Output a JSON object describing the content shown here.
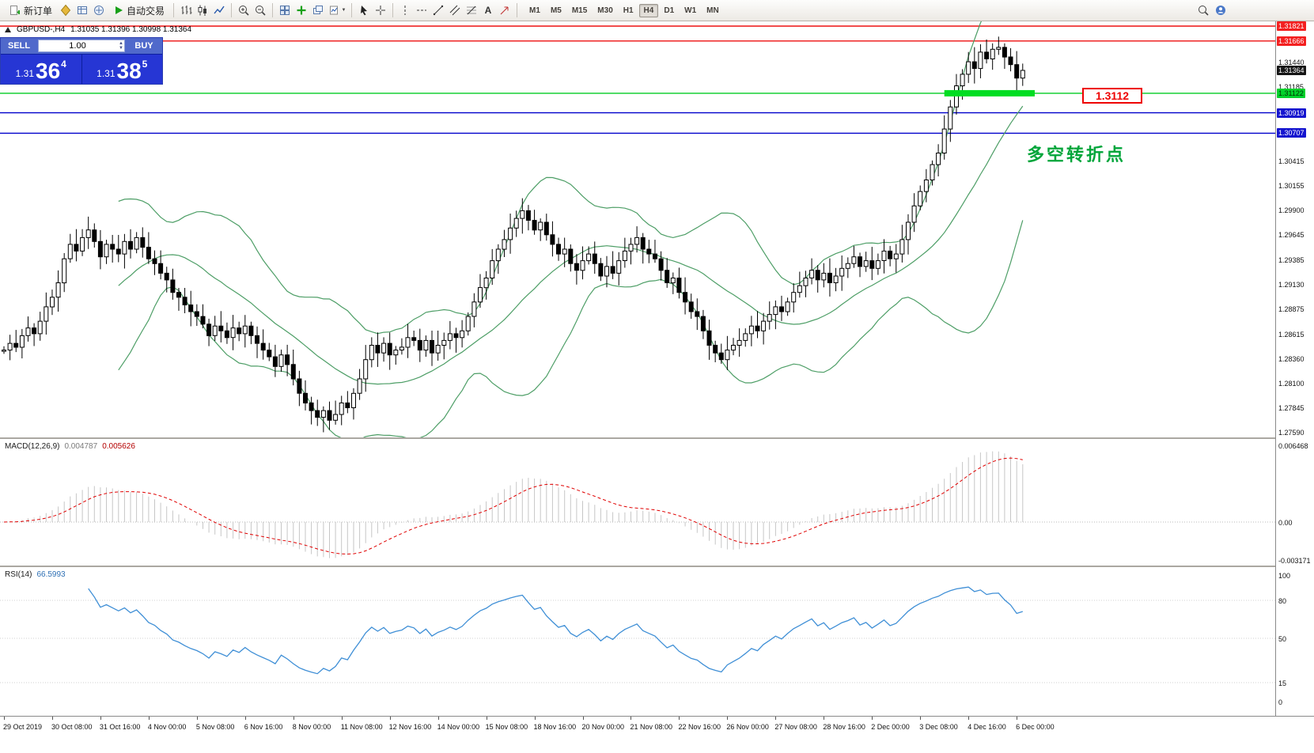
{
  "toolbar": {
    "new_order_label": "新订单",
    "auto_trading_label": "自动交易",
    "timeframes": [
      "M1",
      "M5",
      "M15",
      "M30",
      "H1",
      "H4",
      "D1",
      "W1",
      "MN"
    ],
    "active_timeframe": "H4"
  },
  "icons": {
    "dropdown_caret": "▼",
    "volume_up": "▲",
    "volume_down": "▼"
  },
  "trade_panel": {
    "sell_label": "SELL",
    "buy_label": "BUY",
    "volume": "1.00",
    "sell_price_prefix": "1.31",
    "sell_price_big": "36",
    "sell_price_sup": "4",
    "buy_price_prefix": "1.31",
    "buy_price_big": "38",
    "buy_price_sup": "5"
  },
  "chart_header": {
    "symbol_period": "GBPUSD-,H4",
    "ohlc": "1.31035 1.31396 1.30998 1.31364"
  },
  "objects": {
    "pivot_text": "多空转折点",
    "level_label": "1.3112"
  },
  "macd_panel": {
    "label": "MACD(12,26,9)",
    "value1": "0.004787",
    "value2": "0.005626"
  },
  "rsi_panel": {
    "label": "RSI(14)",
    "value": "66.5993"
  },
  "price_axis": {
    "items": [
      {
        "text": "1.31821",
        "style": "red"
      },
      {
        "text": "1.31666",
        "style": "red"
      },
      {
        "text": "1.31440",
        "style": "plain"
      },
      {
        "text": "1.31364",
        "style": "current"
      },
      {
        "text": "1.31185",
        "style": "plain"
      },
      {
        "text": "1.31122",
        "style": "green"
      },
      {
        "text": "1.30919",
        "style": "blue"
      },
      {
        "text": "1.30707",
        "style": "blue"
      },
      {
        "text": "1.30415",
        "style": "plain"
      },
      {
        "text": "1.30155",
        "style": "plain"
      },
      {
        "text": "1.29900",
        "style": "plain"
      },
      {
        "text": "1.29645",
        "style": "plain"
      },
      {
        "text": "1.29385",
        "style": "plain"
      },
      {
        "text": "1.29130",
        "style": "plain"
      },
      {
        "text": "1.28875",
        "style": "plain"
      },
      {
        "text": "1.28615",
        "style": "plain"
      },
      {
        "text": "1.28360",
        "style": "plain"
      },
      {
        "text": "1.28100",
        "style": "plain"
      },
      {
        "text": "1.27845",
        "style": "plain"
      }
    ],
    "bottom_item": {
      "text": "1.27590",
      "style": "plain"
    },
    "macd_items": [
      {
        "text": "0.006468",
        "value": 0.006468
      },
      {
        "text": "0.00",
        "value": 0
      },
      {
        "text": "-0.003171",
        "value": -0.003171
      }
    ],
    "rsi_items": [
      {
        "text": "100",
        "value": 100
      },
      {
        "text": "80",
        "value": 80
      },
      {
        "text": "50",
        "value": 50
      },
      {
        "text": "15",
        "value": 15
      },
      {
        "text": "0",
        "value": 0
      }
    ]
  },
  "chart_data": {
    "type": "candlestick",
    "title": "GBPUSD- H4",
    "symbol": "GBPUSD-",
    "timeframe": "H4",
    "ohlc_display": {
      "open": "1.31035",
      "high": "1.31396",
      "low": "1.30998",
      "close": "1.31364"
    },
    "ylim": [
      1.2759,
      1.31821
    ],
    "closes": [
      1.2845,
      1.2852,
      1.2848,
      1.286,
      1.2868,
      1.2862,
      1.2875,
      1.289,
      1.29,
      1.2915,
      1.294,
      1.2955,
      1.2948,
      1.2962,
      1.297,
      1.2958,
      1.2942,
      1.2955,
      1.295,
      1.2945,
      1.2958,
      1.295,
      1.2962,
      1.2952,
      1.294,
      1.2935,
      1.2925,
      1.2918,
      1.2905,
      1.29,
      1.2892,
      1.2885,
      1.288,
      1.2872,
      1.286,
      1.287,
      1.2865,
      1.2858,
      1.2868,
      1.2862,
      1.287,
      1.286,
      1.2852,
      1.2845,
      1.2838,
      1.2828,
      1.284,
      1.283,
      1.2815,
      1.28,
      1.279,
      1.2782,
      1.2775,
      1.2782,
      1.2772,
      1.2778,
      1.279,
      1.2785,
      1.28,
      1.2815,
      1.2835,
      1.285,
      1.2842,
      1.2852,
      1.284,
      1.2845,
      1.2848,
      1.2858,
      1.2855,
      1.2845,
      1.2855,
      1.2842,
      1.285,
      1.2855,
      1.2862,
      1.2858,
      1.2865,
      1.288,
      1.2895,
      1.291,
      1.292,
      1.2938,
      1.295,
      1.296,
      1.2972,
      1.2982,
      1.299,
      1.298,
      1.297,
      1.2978,
      1.2965,
      1.2955,
      1.2945,
      1.295,
      1.2935,
      1.2928,
      1.2938,
      1.2945,
      1.2935,
      1.2922,
      1.2932,
      1.2925,
      1.2938,
      1.2948,
      1.2955,
      1.2962,
      1.295,
      1.2945,
      1.294,
      1.2928,
      1.2915,
      1.292,
      1.2905,
      1.2895,
      1.2885,
      1.288,
      1.2865,
      1.285,
      1.2842,
      1.2835,
      1.2845,
      1.285,
      1.2855,
      1.2862,
      1.287,
      1.2865,
      1.2875,
      1.2882,
      1.289,
      1.2885,
      1.2895,
      1.2905,
      1.2912,
      1.292,
      1.2928,
      1.2918,
      1.2925,
      1.2915,
      1.2922,
      1.293,
      1.2935,
      1.2942,
      1.2932,
      1.2938,
      1.293,
      1.2938,
      1.2948,
      1.294,
      1.2945,
      1.296,
      1.2978,
      1.2995,
      1.301,
      1.3022,
      1.3038,
      1.305,
      1.3075,
      1.3098,
      1.312,
      1.3132,
      1.3145,
      1.3138,
      1.3155,
      1.3148,
      1.3158,
      1.316,
      1.315,
      1.3142,
      1.3128,
      1.3136
    ],
    "levels": [
      {
        "price": 1.31821,
        "color": "#ee1111"
      },
      {
        "price": 1.31666,
        "color": "#ee1111"
      },
      {
        "price": 1.31122,
        "color": "#00cc22"
      },
      {
        "price": 1.30919,
        "color": "#0000cc"
      },
      {
        "price": 1.30707,
        "color": "#0000cc"
      }
    ],
    "level_highlight": {
      "price": 1.31122,
      "from_candle": 156,
      "to_candle": 171
    },
    "current_price": 1.31364,
    "indicators": {
      "bollinger": {
        "period": 20,
        "deviation": 2,
        "color": "#4d9e66"
      },
      "macd": {
        "fast": 12,
        "slow": 26,
        "signal": 9,
        "histogram_color": "#c6c6c6",
        "signal_color": "#e00000"
      },
      "rsi": {
        "period": 14,
        "color": "#3f8fd6"
      }
    },
    "x_labels": [
      "29 Oct 2019",
      "30 Oct 08:00",
      "31 Oct 16:00",
      "4 Nov 00:00",
      "5 Nov 08:00",
      "6 Nov 16:00",
      "8 Nov 00:00",
      "11 Nov 08:00",
      "12 Nov 16:00",
      "14 Nov 00:00",
      "15 Nov 08:00",
      "18 Nov 16:00",
      "20 Nov 00:00",
      "21 Nov 08:00",
      "22 Nov 16:00",
      "26 Nov 00:00",
      "27 Nov 08:00",
      "28 Nov 16:00",
      "2 Dec 00:00",
      "3 Dec 08:00",
      "4 Dec 16:00",
      "6 Dec 00:00"
    ]
  }
}
